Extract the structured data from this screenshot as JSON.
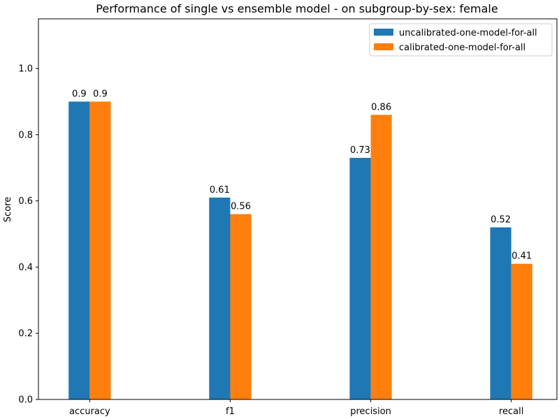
{
  "chart_data": {
    "type": "bar",
    "title": "Performance of single vs ensemble model - on subgroup-by-sex: female",
    "xlabel": "",
    "ylabel": "Score",
    "categories": [
      "accuracy",
      "f1",
      "precision",
      "recall"
    ],
    "series": [
      {
        "name": "uncalibrated-one-model-for-all",
        "values": [
          0.9,
          0.61,
          0.73,
          0.52
        ],
        "color": "#1f77b4",
        "labels": [
          "0.9",
          "0.61",
          "0.73",
          "0.52"
        ]
      },
      {
        "name": "calibrated-one-model-for-all",
        "values": [
          0.9,
          0.56,
          0.86,
          0.41
        ],
        "color": "#ff7f0e",
        "labels": [
          "0.9",
          "0.56",
          "0.86",
          "0.41"
        ]
      }
    ],
    "ylim": [
      0,
      1.15
    ],
    "yticks": [
      0.0,
      0.2,
      0.4,
      0.6,
      0.8,
      1.0
    ],
    "ytick_labels": [
      "0.0",
      "0.2",
      "0.4",
      "0.6",
      "0.8",
      "1.0"
    ],
    "legend_position": "top-right",
    "grid": false
  }
}
